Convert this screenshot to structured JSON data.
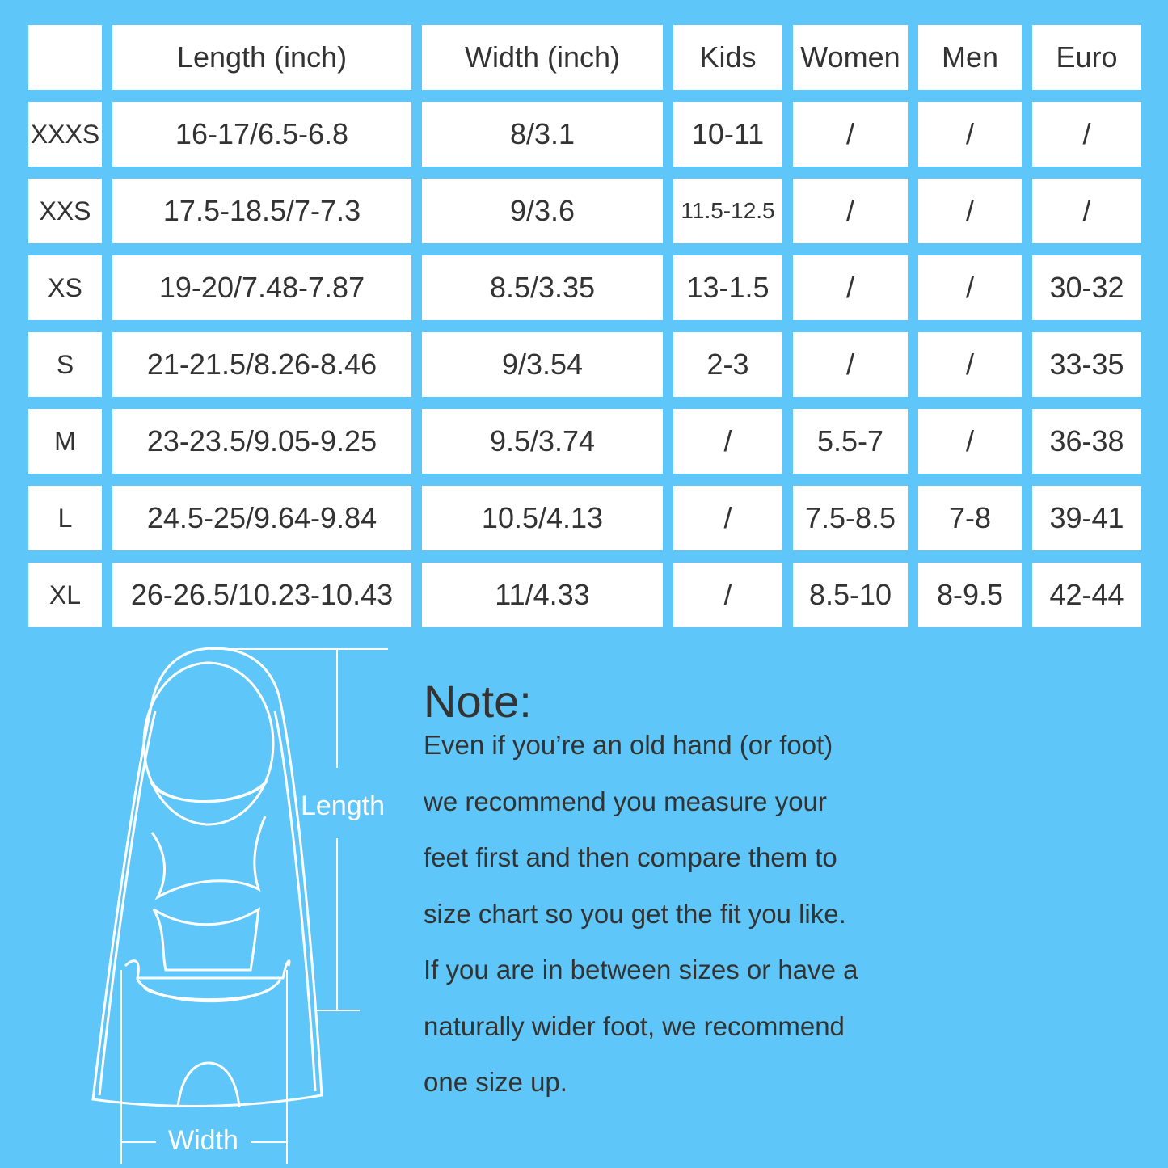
{
  "table": {
    "headers": [
      "",
      "Length (inch)",
      "Width (inch)",
      "Kids",
      "Women",
      "Men",
      "Euro"
    ],
    "rows": [
      [
        "XXXS",
        "16-17/6.5-6.8",
        "8/3.1",
        "10-11",
        "/",
        "/",
        "/"
      ],
      [
        "XXS",
        "17.5-18.5/7-7.3",
        "9/3.6",
        "11.5-12.5",
        "/",
        "/",
        "/"
      ],
      [
        "XS",
        "19-20/7.48-7.87",
        "8.5/3.35",
        "13-1.5",
        "/",
        "/",
        "30-32"
      ],
      [
        "S",
        "21-21.5/8.26-8.46",
        "9/3.54",
        "2-3",
        "/",
        "/",
        "33-35"
      ],
      [
        "M",
        "23-23.5/9.05-9.25",
        "9.5/3.74",
        "/",
        "5.5-7",
        "/",
        "36-38"
      ],
      [
        "L",
        "24.5-25/9.64-9.84",
        "10.5/4.13",
        "/",
        "7.5-8.5",
        "7-8",
        "39-41"
      ],
      [
        "XL",
        "26-26.5/10.23-10.43",
        "11/4.33",
        "/",
        "8.5-10",
        "8-9.5",
        "42-44"
      ]
    ]
  },
  "diagram": {
    "length_label": "Length",
    "width_label": "Width",
    "icon": "swim-fin-outline"
  },
  "note": {
    "title": "Note:",
    "lines": [
      "Even if you’re an old hand (or foot)",
      "we recommend you measure your",
      "feet first and then compare them to",
      "size chart so you get the fit you like.",
      "If you are in between sizes or have a",
      "naturally wider foot, we recommend",
      "one size up."
    ]
  },
  "colors": {
    "background": "#5ec6f8",
    "cell": "#ffffff",
    "text": "#333333"
  }
}
